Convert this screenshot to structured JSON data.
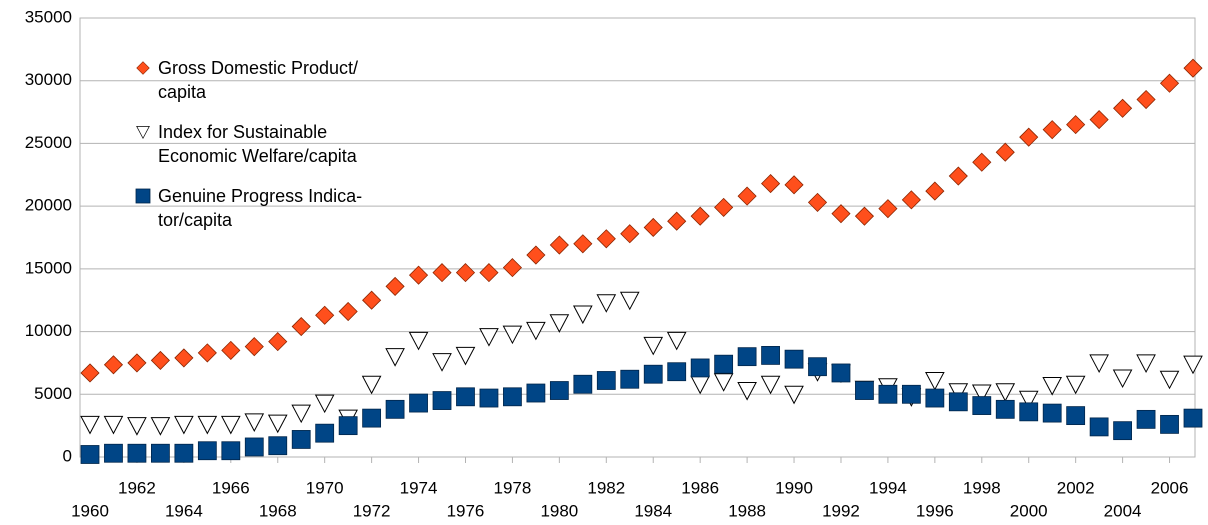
{
  "chart_data": {
    "type": "scatter",
    "x": [
      1960,
      1961,
      1962,
      1963,
      1964,
      1965,
      1966,
      1967,
      1968,
      1969,
      1970,
      1971,
      1972,
      1973,
      1974,
      1975,
      1976,
      1977,
      1978,
      1979,
      1980,
      1981,
      1982,
      1983,
      1984,
      1985,
      1986,
      1987,
      1988,
      1989,
      1990,
      1991,
      1992,
      1993,
      1994,
      1995,
      1996,
      1997,
      1998,
      1999,
      2000,
      2001,
      2002,
      2003,
      2004,
      2005,
      2006,
      2007
    ],
    "series": [
      {
        "name": "Gross Domestic Product/\ncapita",
        "color": "#ff4f1c",
        "marker": "diamond",
        "values": [
          6700,
          7350,
          7500,
          7700,
          7900,
          8300,
          8500,
          8800,
          9200,
          10400,
          11300,
          11600,
          12500,
          13600,
          14500,
          14700,
          14700,
          14700,
          15100,
          16100,
          16900,
          17000,
          17400,
          17800,
          18300,
          18800,
          19200,
          19900,
          20800,
          21800,
          21700,
          20300,
          19400,
          19200,
          19800,
          20500,
          21200,
          22400,
          23500,
          24300,
          25500,
          26100,
          26500,
          26900,
          27800,
          28500,
          29800,
          31000
        ]
      },
      {
        "name": "Index for Sustainable\nEconomic Welfare/capita",
        "color": "#ffffff",
        "marker": "triangle",
        "values": [
          2600,
          2600,
          2500,
          2500,
          2600,
          2600,
          2600,
          2800,
          2700,
          3500,
          4300,
          3100,
          5800,
          8000,
          9300,
          7600,
          8100,
          9600,
          9800,
          10100,
          10700,
          11400,
          12300,
          12500,
          8900,
          9300,
          5800,
          6000,
          5300,
          5800,
          5000,
          6800,
          6700,
          5400,
          5600,
          4800,
          6100,
          5200,
          5100,
          5200,
          4600,
          5700,
          5800,
          7500,
          6300,
          7500,
          6200,
          7400
        ]
      },
      {
        "name": "Genuine Progress Indica-\ntor/capita",
        "color": "#004586",
        "marker": "square",
        "values": [
          200,
          300,
          300,
          300,
          300,
          500,
          500,
          800,
          900,
          1400,
          1900,
          2500,
          3100,
          3800,
          4300,
          4500,
          4800,
          4700,
          4800,
          5100,
          5300,
          5800,
          6100,
          6200,
          6600,
          6800,
          7100,
          7400,
          8000,
          8100,
          7800,
          7200,
          6700,
          5300,
          5000,
          5000,
          4700,
          4400,
          4100,
          3800,
          3600,
          3500,
          3300,
          2400,
          2100,
          3000,
          2600,
          3100
        ]
      }
    ],
    "xlim": [
      1960,
      2007
    ],
    "xticks": [
      1960,
      1962,
      1964,
      1966,
      1968,
      1970,
      1972,
      1974,
      1976,
      1978,
      1980,
      1982,
      1984,
      1986,
      1988,
      1990,
      1992,
      1994,
      1996,
      1998,
      2000,
      2002,
      2004,
      2006
    ],
    "ylim": [
      0,
      35000
    ],
    "yticks": [
      0,
      5000,
      10000,
      15000,
      20000,
      25000,
      30000,
      35000
    ],
    "grid": true
  }
}
